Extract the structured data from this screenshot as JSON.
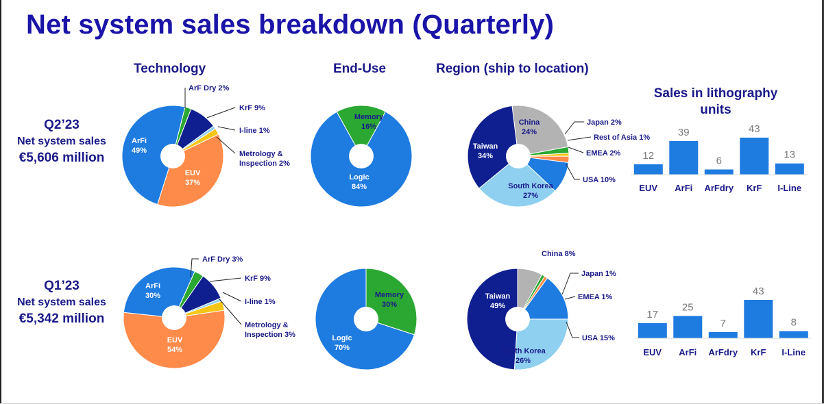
{
  "page": {
    "title": "Net system sales breakdown (Quarterly)",
    "columns": {
      "technology": "Technology",
      "end_use": "End-Use",
      "region": "Region (ship to location)",
      "litho_units": "Sales in lithography units"
    },
    "quarters": [
      {
        "quarter": "Q2’23",
        "subtitle": "Net system sales",
        "amount": "€5,606 million"
      },
      {
        "quarter": "Q1’23",
        "subtitle": "Net system sales",
        "amount": "€5,342 million"
      }
    ]
  },
  "colors": {
    "title": "#1a14a8",
    "label_dark": "#1a1a8a",
    "ArFi": "#1e7be0",
    "ArF Dry": "#2aa832",
    "KrF": "#0f1f8f",
    "I-line": "#8fd0f0",
    "Metrology & Inspection": "#f5c518",
    "EUV": "#ff8b4a",
    "Memory": "#2aa832",
    "Logic": "#1e7be0",
    "China": "#b3b3b3",
    "Japan": "#2aa832",
    "Rest of Asia": "#f5c518",
    "EMEA": "#ff8b4a",
    "USA": "#1e7be0",
    "South Korea": "#8fd0f0",
    "Taiwan": "#0f1f8f",
    "bar": "#1e7be0"
  },
  "chart_data": [
    {
      "type": "pie",
      "group": "Technology",
      "period": "Q2’23",
      "slices": [
        {
          "label": "ArF Dry",
          "value": 2
        },
        {
          "label": "KrF",
          "value": 9
        },
        {
          "label": "I-line",
          "value": 1
        },
        {
          "label": "Metrology & Inspection",
          "value": 2
        },
        {
          "label": "EUV",
          "value": 37
        },
        {
          "label": "ArFi",
          "value": 49
        }
      ]
    },
    {
      "type": "pie",
      "group": "End-Use",
      "period": "Q2’23",
      "slices": [
        {
          "label": "Memory",
          "value": 16
        },
        {
          "label": "Logic",
          "value": 84
        }
      ]
    },
    {
      "type": "pie",
      "group": "Region (ship to location)",
      "period": "Q2’23",
      "slices": [
        {
          "label": "China",
          "value": 24
        },
        {
          "label": "Japan",
          "value": 2
        },
        {
          "label": "Rest of Asia",
          "value": 1
        },
        {
          "label": "EMEA",
          "value": 2
        },
        {
          "label": "USA",
          "value": 10
        },
        {
          "label": "South Korea",
          "value": 27
        },
        {
          "label": "Taiwan",
          "value": 34
        }
      ]
    },
    {
      "type": "bar",
      "group": "Sales in lithography units",
      "period": "Q2’23",
      "categories": [
        "EUV",
        "ArFi",
        "ArFdry",
        "KrF",
        "I-Line"
      ],
      "values": [
        12,
        39,
        6,
        43,
        13
      ]
    },
    {
      "type": "pie",
      "group": "Technology",
      "period": "Q1’23",
      "slices": [
        {
          "label": "ArF Dry",
          "value": 3
        },
        {
          "label": "KrF",
          "value": 9
        },
        {
          "label": "I-line",
          "value": 1
        },
        {
          "label": "Metrology & Inspection",
          "value": 3
        },
        {
          "label": "EUV",
          "value": 54
        },
        {
          "label": "ArFi",
          "value": 30
        }
      ]
    },
    {
      "type": "pie",
      "group": "End-Use",
      "period": "Q1’23",
      "slices": [
        {
          "label": "Memory",
          "value": 30
        },
        {
          "label": "Logic",
          "value": 70
        }
      ]
    },
    {
      "type": "pie",
      "group": "Region (ship to location)",
      "period": "Q1’23",
      "slices": [
        {
          "label": "China",
          "value": 8
        },
        {
          "label": "Japan",
          "value": 1
        },
        {
          "label": "EMEA",
          "value": 1
        },
        {
          "label": "USA",
          "value": 15
        },
        {
          "label": "South Korea",
          "value": 26
        },
        {
          "label": "Taiwan",
          "value": 49
        }
      ]
    },
    {
      "type": "bar",
      "group": "Sales in lithography units",
      "period": "Q1’23",
      "categories": [
        "EUV",
        "ArFi",
        "ArFdry",
        "KrF",
        "I-Line"
      ],
      "values": [
        17,
        25,
        7,
        43,
        8
      ]
    }
  ]
}
